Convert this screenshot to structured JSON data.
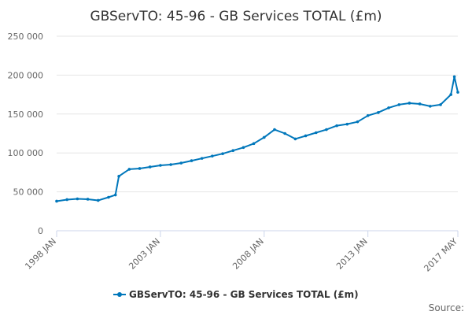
{
  "chart_data": {
    "type": "line",
    "title": "GBServTO: 45-96 - GB Services TOTAL (£m)",
    "xlabel": "",
    "ylabel": "",
    "x_range": [
      "1998 JAN",
      "2017 MAY"
    ],
    "ylim": [
      0,
      250000
    ],
    "y_ticks": [
      0,
      50000,
      100000,
      150000,
      200000,
      250000
    ],
    "y_tick_labels": [
      "0",
      "50 000",
      "100 000",
      "150 000",
      "200 000",
      "250 000"
    ],
    "x_ticks": [
      {
        "value": "1998-01",
        "label": "1998 JAN"
      },
      {
        "value": "2003-01",
        "label": "2003 JAN"
      },
      {
        "value": "2008-01",
        "label": "2008 JAN"
      },
      {
        "value": "2013-01",
        "label": "2013 JAN"
      },
      {
        "value": "2017-05",
        "label": "2017 MAY"
      }
    ],
    "grid": true,
    "legend_position": "bottom-center",
    "series": [
      {
        "name": "GBServTO: 45-96 - GB Services TOTAL (£m)",
        "color": "#0077bb",
        "x": [
          "1998-01",
          "1998-07",
          "1999-01",
          "1999-07",
          "2000-01",
          "2000-07",
          "2000-11",
          "2001-01",
          "2001-07",
          "2002-01",
          "2002-07",
          "2003-01",
          "2003-07",
          "2004-01",
          "2004-07",
          "2005-01",
          "2005-07",
          "2006-01",
          "2006-07",
          "2007-01",
          "2007-07",
          "2008-01",
          "2008-07",
          "2009-01",
          "2009-07",
          "2010-01",
          "2010-07",
          "2011-01",
          "2011-07",
          "2012-01",
          "2012-07",
          "2013-01",
          "2013-07",
          "2014-01",
          "2014-07",
          "2015-01",
          "2015-07",
          "2016-01",
          "2016-07",
          "2017-01",
          "2017-03",
          "2017-05"
        ],
        "values": [
          38000,
          40000,
          41000,
          40500,
          39000,
          43000,
          46000,
          70000,
          79000,
          80000,
          82000,
          84000,
          85000,
          87000,
          90000,
          93000,
          96000,
          99000,
          103000,
          107000,
          112000,
          120000,
          130000,
          125000,
          118000,
          122000,
          126000,
          130000,
          135000,
          137000,
          140000,
          148000,
          152000,
          158000,
          162000,
          164000,
          163000,
          160000,
          162000,
          175000,
          198000,
          178000
        ]
      }
    ],
    "credits": "Source:"
  }
}
